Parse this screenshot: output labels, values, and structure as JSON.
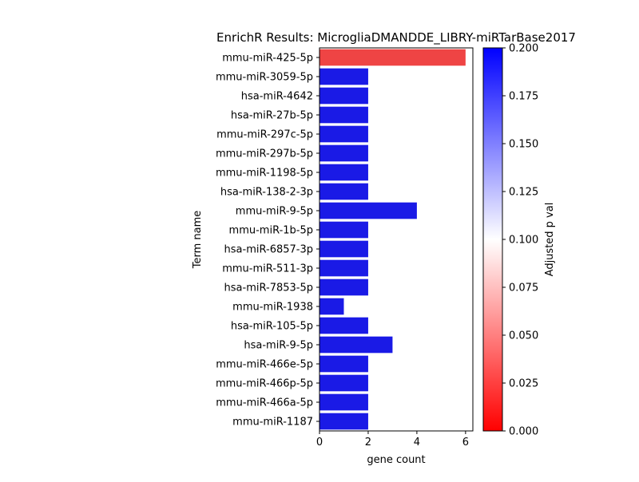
{
  "chart_data": {
    "type": "bar",
    "orientation": "horizontal",
    "title": "EnrichR Results: MicrogliaDMANDDE_LIBRY-miRTarBase2017",
    "xlabel": "gene count",
    "ylabel": "Term name",
    "xlim": [
      0,
      6.3
    ],
    "xticks": [
      "0",
      "2",
      "4",
      "6"
    ],
    "categories": [
      "mmu-miR-425-5p",
      "mmu-miR-3059-5p",
      "hsa-miR-4642",
      "hsa-miR-27b-5p",
      "mmu-miR-297c-5p",
      "mmu-miR-297b-5p",
      "mmu-miR-1198-5p",
      "hsa-miR-138-2-3p",
      "mmu-miR-9-5p",
      "mmu-miR-1b-5p",
      "hsa-miR-6857-3p",
      "mmu-miR-511-3p",
      "hsa-miR-7853-5p",
      "mmu-miR-1938",
      "hsa-miR-105-5p",
      "hsa-miR-9-5p",
      "mmu-miR-466e-5p",
      "mmu-miR-466p-5p",
      "mmu-miR-466a-5p",
      "mmu-miR-1187"
    ],
    "values": [
      6,
      2,
      2,
      2,
      2,
      2,
      2,
      2,
      4,
      2,
      2,
      2,
      2,
      1,
      2,
      3,
      2,
      2,
      2,
      2
    ],
    "bar_colors": [
      "#ef4444",
      "#1a1ae6",
      "#1a1ae6",
      "#1a1ae6",
      "#1a1ae6",
      "#1a1ae6",
      "#1a1ae6",
      "#1a1ae6",
      "#1a1ae6",
      "#1a1ae6",
      "#1a1ae6",
      "#1a1ae6",
      "#1a1ae6",
      "#1a1ae6",
      "#1a1ae6",
      "#1a1ae6",
      "#1a1ae6",
      "#1a1ae6",
      "#1a1ae6",
      "#1a1ae6"
    ],
    "colorbar": {
      "label": "Adjusted p val",
      "range": [
        0,
        0.2
      ],
      "ticks": [
        "0.000",
        "0.025",
        "0.050",
        "0.075",
        "0.100",
        "0.125",
        "0.150",
        "0.175",
        "0.200"
      ],
      "colors": {
        "low": "#ff0000",
        "mid": "#ffffff",
        "high": "#0000ff"
      }
    },
    "grid": false,
    "legend": "none"
  }
}
